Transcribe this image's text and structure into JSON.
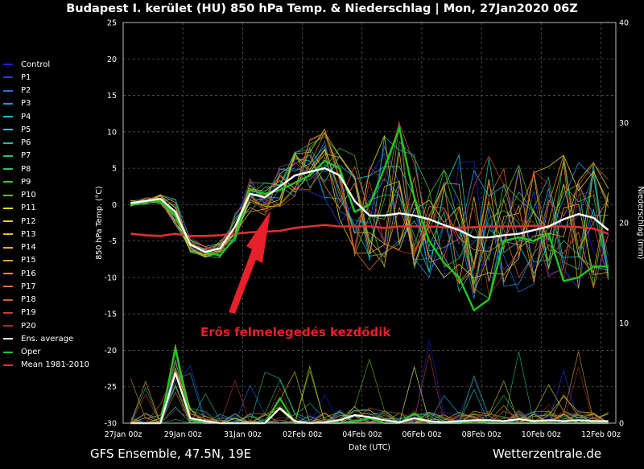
{
  "title": "Budapest I. kerület  (HU)  850 hPa Temp. & Niederschlag | Mon, 27Jan2020 06Z",
  "footer": {
    "left": "GFS Ensemble, 47.5N, 19E",
    "right": "Wetterzentrale.de"
  },
  "annotation": "Erős felmelegedés kezdődik",
  "colors": {
    "annotation": "#e8202a",
    "ens_average": "#ffffff",
    "oper": "#22c522",
    "mean": "#e03030"
  },
  "legend": [
    {
      "name": "Control",
      "color": "#2020d0"
    },
    {
      "name": "P1",
      "color": "#2040e0"
    },
    {
      "name": "P2",
      "color": "#2070e0"
    },
    {
      "name": "P3",
      "color": "#2090e0"
    },
    {
      "name": "P4",
      "color": "#20b0e0"
    },
    {
      "name": "P5",
      "color": "#20d0d0"
    },
    {
      "name": "P6",
      "color": "#20c0a0"
    },
    {
      "name": "P7",
      "color": "#20c080"
    },
    {
      "name": "P8",
      "color": "#30c060"
    },
    {
      "name": "P9",
      "color": "#40c040"
    },
    {
      "name": "P10",
      "color": "#60c020"
    },
    {
      "name": "P11",
      "color": "#e0e020"
    },
    {
      "name": "P12",
      "color": "#e0d030"
    },
    {
      "name": "P13",
      "color": "#e0c030"
    },
    {
      "name": "P14",
      "color": "#e0b030"
    },
    {
      "name": "P15",
      "color": "#e0a030"
    },
    {
      "name": "P16",
      "color": "#e09030"
    },
    {
      "name": "P17",
      "color": "#e07030"
    },
    {
      "name": "P18",
      "color": "#d06030"
    },
    {
      "name": "P19",
      "color": "#c04030"
    },
    {
      "name": "P20",
      "color": "#a03030"
    },
    {
      "name": "Ens. average",
      "color": "#ffffff"
    },
    {
      "name": "Oper",
      "color": "#22c522"
    },
    {
      "name": "Mean 1981-2010",
      "color": "#e03030"
    }
  ],
  "chart_data": {
    "type": "line",
    "xlabel": "Date (UTC)",
    "ylabel": "850 hPa Temp. (°C)",
    "ylabel_right": "Niederschlag (mm)",
    "ylim": [
      -30,
      25
    ],
    "ylim_right": [
      0,
      40
    ],
    "yticks": [
      "-30",
      "-25",
      "-20",
      "-15",
      "-10",
      "-5",
      "0",
      "5",
      "10",
      "15",
      "20",
      "25"
    ],
    "yticks_right": [
      "0",
      "10",
      "20",
      "30",
      "40"
    ],
    "x_ticks": [
      "27Jan 00z",
      "29Jan 00z",
      "31Jan 00z",
      "02Feb 00z",
      "04Feb 00z",
      "06Feb 00z",
      "08Feb 00z",
      "10Feb 00z",
      "12Feb 00z"
    ],
    "grid": true,
    "temperature": {
      "x_days": [
        0.25,
        0.75,
        1.25,
        1.75,
        2.25,
        2.75,
        3.25,
        3.75,
        4.25,
        4.75,
        5.25,
        5.75,
        6.25,
        6.75,
        7.25,
        7.75,
        8.25,
        8.75,
        9.25,
        9.75,
        10.25,
        10.75,
        11.25,
        11.75,
        12.25,
        12.75,
        13.25,
        13.75,
        14.25,
        14.75,
        15.25,
        15.75,
        16.25
      ],
      "ens_average": [
        0.2,
        0.5,
        0.8,
        -1.0,
        -5.5,
        -6.5,
        -6.0,
        -3.0,
        1.5,
        1.0,
        2.5,
        4.0,
        4.5,
        5.0,
        4.0,
        0.5,
        -1.5,
        -1.5,
        -1.2,
        -1.5,
        -2.0,
        -2.8,
        -3.5,
        -4.5,
        -4.5,
        -4.2,
        -4.0,
        -3.5,
        -3.0,
        -2.0,
        -1.3,
        -1.8,
        -3.5
      ],
      "oper": [
        0.0,
        0.4,
        0.5,
        -1.5,
        -5.5,
        -6.5,
        -7.0,
        -4.5,
        2.0,
        1.5,
        2.0,
        3.0,
        4.0,
        6.0,
        5.0,
        -1.0,
        0.0,
        5.0,
        10.5,
        1.0,
        -5.0,
        -8.0,
        -10.0,
        -14.5,
        -13.0,
        -5.0,
        -4.5,
        -5.0,
        -4.0,
        -10.5,
        -10.0,
        -8.5,
        -8.5
      ],
      "mean_1981_2010": [
        -4.0,
        -4.2,
        -4.3,
        -4.0,
        -4.3,
        -4.3,
        -4.2,
        -4.0,
        -3.8,
        -3.7,
        -3.6,
        -3.2,
        -3.0,
        -2.8,
        -3.0,
        -3.0,
        -3.0,
        -3.2,
        -3.0,
        -3.0,
        -3.0,
        -3.1,
        -3.2,
        -3.1,
        -3.0,
        -3.0,
        -3.0,
        -2.9,
        -3.0,
        -3.0,
        -3.1,
        -3.3,
        -4.0
      ],
      "members_range": {
        "min": [
          -0.5,
          0.0,
          -0.5,
          -4.0,
          -7.0,
          -7.5,
          -7.5,
          -6.0,
          -1.0,
          -1.5,
          -1.0,
          1.0,
          1.5,
          0.0,
          -3.0,
          -7.0,
          -9.0,
          -9.0,
          -8.5,
          -9.0,
          -10.0,
          -11.0,
          -12.0,
          -13.0,
          -13.0,
          -13.0,
          -12.5,
          -12.0,
          -12.0,
          -12.0,
          -11.5,
          -11.5,
          -11.5
        ],
        "max": [
          1.0,
          1.5,
          2.0,
          2.0,
          -3.5,
          -5.0,
          -3.0,
          1.0,
          4.0,
          4.0,
          5.5,
          7.5,
          9.5,
          10.5,
          9.0,
          7.0,
          6.5,
          10.0,
          11.5,
          8.0,
          6.0,
          6.0,
          7.0,
          6.5,
          7.5,
          5.0,
          6.0,
          5.5,
          6.0,
          7.0,
          6.5,
          6.0,
          5.5
        ]
      }
    },
    "precipitation_mm": {
      "x_days": [
        0.25,
        0.75,
        1.25,
        1.75,
        2.25,
        2.75,
        3.25,
        3.75,
        4.25,
        4.75,
        5.25,
        5.75,
        6.25,
        6.75,
        7.25,
        7.75,
        8.25,
        8.75,
        9.25,
        9.75,
        10.25,
        10.75,
        11.25,
        11.75,
        12.25,
        12.75,
        13.25,
        13.75,
        14.25,
        14.75,
        15.25,
        15.75,
        16.25
      ],
      "ens_average": [
        0,
        0,
        0,
        5.0,
        0.5,
        0.2,
        0,
        0,
        0,
        0,
        1.5,
        0.2,
        0,
        0.1,
        0.3,
        0.8,
        0.6,
        0.3,
        0.1,
        0.5,
        0.2,
        0.1,
        0.2,
        0.3,
        0.3,
        0.2,
        0.4,
        0.2,
        0.3,
        0.2,
        0.3,
        0.2,
        0.2
      ],
      "oper": [
        0,
        0,
        0,
        7.5,
        0.3,
        0,
        0,
        0,
        0,
        0,
        2.5,
        0,
        0,
        0,
        0,
        0.2,
        0.5,
        0,
        0,
        1.0,
        0,
        0,
        0,
        0.2,
        0,
        0,
        0,
        0,
        0,
        0,
        0,
        0,
        0
      ]
    }
  }
}
